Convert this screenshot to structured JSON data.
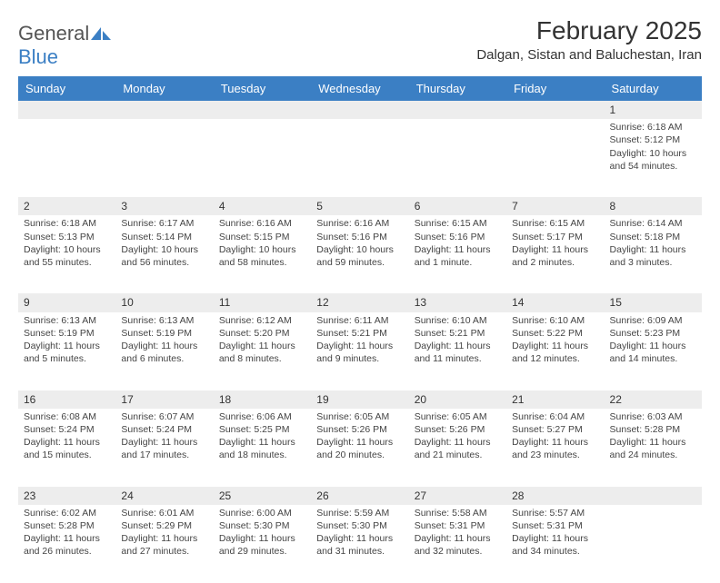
{
  "logo": {
    "text1": "General",
    "text2": "Blue"
  },
  "title": "February 2025",
  "location": "Dalgan, Sistan and Baluchestan, Iran",
  "colors": {
    "header_bg": "#3b7fc4",
    "daynum_bg": "#ededed",
    "page_bg": "#ffffff",
    "text": "#333333"
  },
  "weekdays": [
    "Sunday",
    "Monday",
    "Tuesday",
    "Wednesday",
    "Thursday",
    "Friday",
    "Saturday"
  ],
  "grid": {
    "first_weekday_index": 6,
    "days_in_month": 28
  },
  "days": {
    "1": {
      "sunrise": "6:18 AM",
      "sunset": "5:12 PM",
      "daylight": "10 hours and 54 minutes."
    },
    "2": {
      "sunrise": "6:18 AM",
      "sunset": "5:13 PM",
      "daylight": "10 hours and 55 minutes."
    },
    "3": {
      "sunrise": "6:17 AM",
      "sunset": "5:14 PM",
      "daylight": "10 hours and 56 minutes."
    },
    "4": {
      "sunrise": "6:16 AM",
      "sunset": "5:15 PM",
      "daylight": "10 hours and 58 minutes."
    },
    "5": {
      "sunrise": "6:16 AM",
      "sunset": "5:16 PM",
      "daylight": "10 hours and 59 minutes."
    },
    "6": {
      "sunrise": "6:15 AM",
      "sunset": "5:16 PM",
      "daylight": "11 hours and 1 minute."
    },
    "7": {
      "sunrise": "6:15 AM",
      "sunset": "5:17 PM",
      "daylight": "11 hours and 2 minutes."
    },
    "8": {
      "sunrise": "6:14 AM",
      "sunset": "5:18 PM",
      "daylight": "11 hours and 3 minutes."
    },
    "9": {
      "sunrise": "6:13 AM",
      "sunset": "5:19 PM",
      "daylight": "11 hours and 5 minutes."
    },
    "10": {
      "sunrise": "6:13 AM",
      "sunset": "5:19 PM",
      "daylight": "11 hours and 6 minutes."
    },
    "11": {
      "sunrise": "6:12 AM",
      "sunset": "5:20 PM",
      "daylight": "11 hours and 8 minutes."
    },
    "12": {
      "sunrise": "6:11 AM",
      "sunset": "5:21 PM",
      "daylight": "11 hours and 9 minutes."
    },
    "13": {
      "sunrise": "6:10 AM",
      "sunset": "5:21 PM",
      "daylight": "11 hours and 11 minutes."
    },
    "14": {
      "sunrise": "6:10 AM",
      "sunset": "5:22 PM",
      "daylight": "11 hours and 12 minutes."
    },
    "15": {
      "sunrise": "6:09 AM",
      "sunset": "5:23 PM",
      "daylight": "11 hours and 14 minutes."
    },
    "16": {
      "sunrise": "6:08 AM",
      "sunset": "5:24 PM",
      "daylight": "11 hours and 15 minutes."
    },
    "17": {
      "sunrise": "6:07 AM",
      "sunset": "5:24 PM",
      "daylight": "11 hours and 17 minutes."
    },
    "18": {
      "sunrise": "6:06 AM",
      "sunset": "5:25 PM",
      "daylight": "11 hours and 18 minutes."
    },
    "19": {
      "sunrise": "6:05 AM",
      "sunset": "5:26 PM",
      "daylight": "11 hours and 20 minutes."
    },
    "20": {
      "sunrise": "6:05 AM",
      "sunset": "5:26 PM",
      "daylight": "11 hours and 21 minutes."
    },
    "21": {
      "sunrise": "6:04 AM",
      "sunset": "5:27 PM",
      "daylight": "11 hours and 23 minutes."
    },
    "22": {
      "sunrise": "6:03 AM",
      "sunset": "5:28 PM",
      "daylight": "11 hours and 24 minutes."
    },
    "23": {
      "sunrise": "6:02 AM",
      "sunset": "5:28 PM",
      "daylight": "11 hours and 26 minutes."
    },
    "24": {
      "sunrise": "6:01 AM",
      "sunset": "5:29 PM",
      "daylight": "11 hours and 27 minutes."
    },
    "25": {
      "sunrise": "6:00 AM",
      "sunset": "5:30 PM",
      "daylight": "11 hours and 29 minutes."
    },
    "26": {
      "sunrise": "5:59 AM",
      "sunset": "5:30 PM",
      "daylight": "11 hours and 31 minutes."
    },
    "27": {
      "sunrise": "5:58 AM",
      "sunset": "5:31 PM",
      "daylight": "11 hours and 32 minutes."
    },
    "28": {
      "sunrise": "5:57 AM",
      "sunset": "5:31 PM",
      "daylight": "11 hours and 34 minutes."
    }
  },
  "labels": {
    "sunrise": "Sunrise: ",
    "sunset": "Sunset: ",
    "daylight": "Daylight: "
  }
}
